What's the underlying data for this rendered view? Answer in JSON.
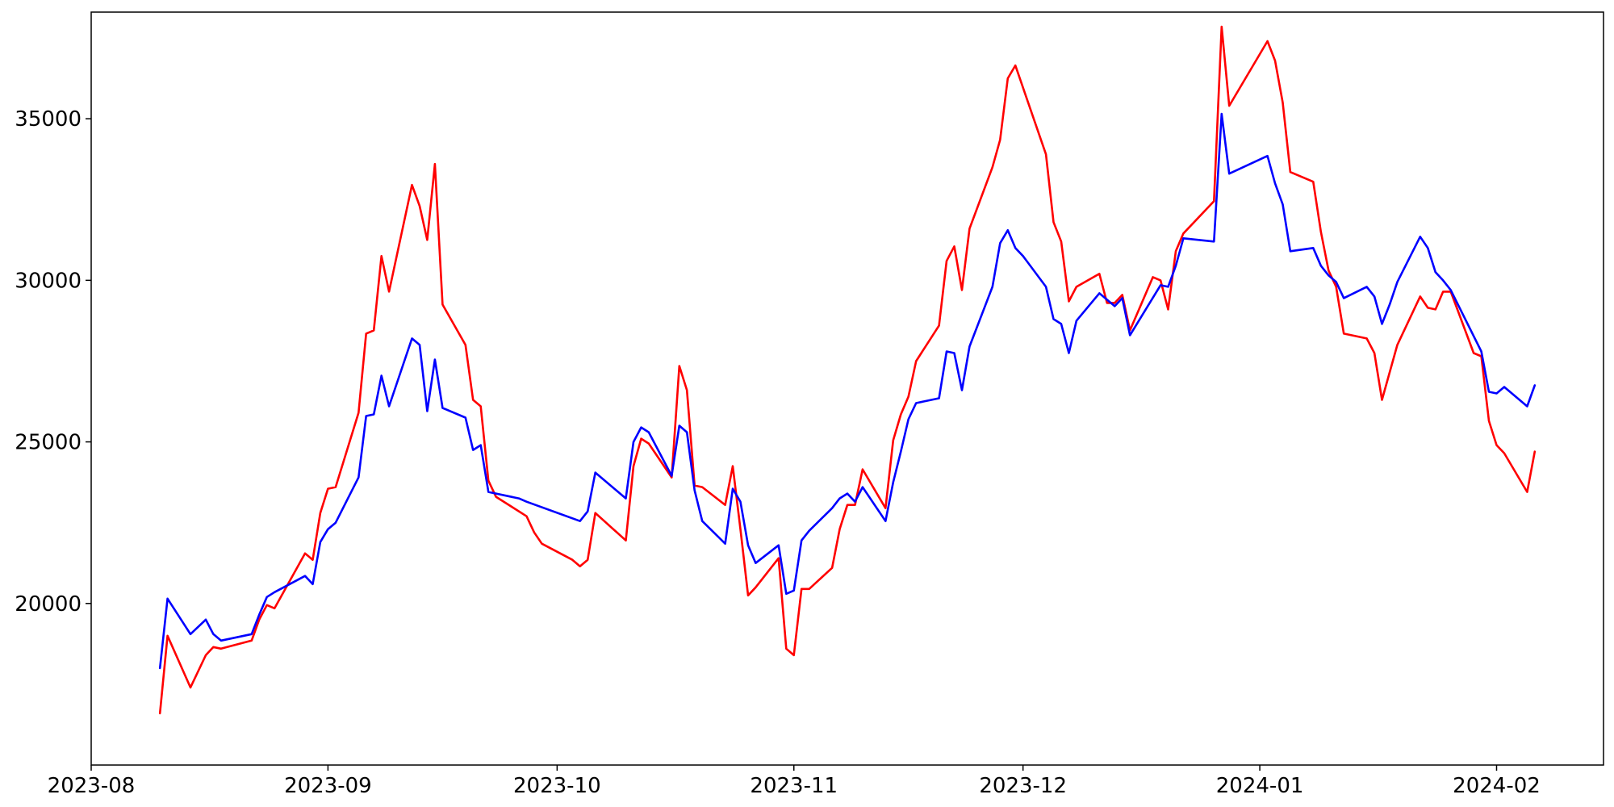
{
  "chart_data": {
    "type": "line",
    "title": "",
    "xlabel": "",
    "ylabel": "",
    "xlim": [
      "2023-08-01",
      "2024-02-15"
    ],
    "ylim": [
      15000,
      38300
    ],
    "grid": false,
    "legend": "none",
    "x_ticks": [
      "2023-08",
      "2023-09",
      "2023-10",
      "2023-11",
      "2023-12",
      "2024-01",
      "2024-02"
    ],
    "x_tick_dates": [
      "2023-08-01",
      "2023-09-01",
      "2023-10-01",
      "2023-11-01",
      "2023-12-01",
      "2024-01-01",
      "2024-02-01"
    ],
    "y_ticks": [
      20000,
      25000,
      30000,
      35000
    ],
    "series": [
      {
        "color": "#ff0000",
        "points": [
          [
            "2023-08-10",
            16600
          ],
          [
            "2023-08-11",
            19000
          ],
          [
            "2023-08-14",
            17400
          ],
          [
            "2023-08-16",
            18400
          ],
          [
            "2023-08-17",
            18650
          ],
          [
            "2023-08-18",
            18600
          ],
          [
            "2023-08-22",
            18850
          ],
          [
            "2023-08-23",
            19500
          ],
          [
            "2023-08-24",
            19950
          ],
          [
            "2023-08-25",
            19850
          ],
          [
            "2023-08-29",
            21550
          ],
          [
            "2023-08-30",
            21350
          ],
          [
            "2023-08-31",
            22800
          ],
          [
            "2023-09-01",
            23550
          ],
          [
            "2023-09-02",
            23600
          ],
          [
            "2023-09-05",
            25900
          ],
          [
            "2023-09-06",
            28350
          ],
          [
            "2023-09-07",
            28450
          ],
          [
            "2023-09-08",
            30750
          ],
          [
            "2023-09-09",
            29650
          ],
          [
            "2023-09-12",
            32950
          ],
          [
            "2023-09-13",
            32300
          ],
          [
            "2023-09-14",
            31250
          ],
          [
            "2023-09-15",
            33600
          ],
          [
            "2023-09-16",
            29250
          ],
          [
            "2023-09-19",
            28000
          ],
          [
            "2023-09-20",
            26300
          ],
          [
            "2023-09-21",
            26100
          ],
          [
            "2023-09-22",
            23800
          ],
          [
            "2023-09-23",
            23300
          ],
          [
            "2023-09-27",
            22700
          ],
          [
            "2023-09-28",
            22200
          ],
          [
            "2023-09-29",
            21850
          ],
          [
            "2023-10-03",
            21350
          ],
          [
            "2023-10-04",
            21150
          ],
          [
            "2023-10-05",
            21350
          ],
          [
            "2023-10-06",
            22800
          ],
          [
            "2023-10-10",
            21950
          ],
          [
            "2023-10-11",
            24250
          ],
          [
            "2023-10-12",
            25100
          ],
          [
            "2023-10-13",
            24950
          ],
          [
            "2023-10-16",
            23900
          ],
          [
            "2023-10-17",
            27350
          ],
          [
            "2023-10-18",
            26600
          ],
          [
            "2023-10-19",
            23650
          ],
          [
            "2023-10-20",
            23600
          ],
          [
            "2023-10-23",
            23050
          ],
          [
            "2023-10-24",
            24250
          ],
          [
            "2023-10-25",
            22300
          ],
          [
            "2023-10-26",
            20250
          ],
          [
            "2023-10-27",
            20500
          ],
          [
            "2023-10-30",
            21400
          ],
          [
            "2023-10-31",
            18600
          ],
          [
            "2023-11-01",
            18400
          ],
          [
            "2023-11-02",
            20450
          ],
          [
            "2023-11-03",
            20450
          ],
          [
            "2023-11-06",
            21100
          ],
          [
            "2023-11-07",
            22300
          ],
          [
            "2023-11-08",
            23050
          ],
          [
            "2023-11-09",
            23050
          ],
          [
            "2023-11-10",
            24150
          ],
          [
            "2023-11-13",
            22950
          ],
          [
            "2023-11-14",
            25050
          ],
          [
            "2023-11-15",
            25850
          ],
          [
            "2023-11-16",
            26400
          ],
          [
            "2023-11-17",
            27500
          ],
          [
            "2023-11-20",
            28600
          ],
          [
            "2023-11-21",
            30600
          ],
          [
            "2023-11-22",
            31050
          ],
          [
            "2023-11-23",
            29700
          ],
          [
            "2023-11-24",
            31600
          ],
          [
            "2023-11-27",
            33500
          ],
          [
            "2023-11-28",
            34350
          ],
          [
            "2023-11-29",
            36250
          ],
          [
            "2023-11-30",
            36650
          ],
          [
            "2023-12-04",
            33900
          ],
          [
            "2023-12-05",
            31800
          ],
          [
            "2023-12-06",
            31200
          ],
          [
            "2023-12-07",
            29350
          ],
          [
            "2023-12-08",
            29800
          ],
          [
            "2023-12-11",
            30200
          ],
          [
            "2023-12-12",
            29300
          ],
          [
            "2023-12-13",
            29300
          ],
          [
            "2023-12-14",
            29550
          ],
          [
            "2023-12-15",
            28450
          ],
          [
            "2023-12-18",
            30100
          ],
          [
            "2023-12-19",
            30000
          ],
          [
            "2023-12-20",
            29100
          ],
          [
            "2023-12-21",
            30900
          ],
          [
            "2023-12-22",
            31450
          ],
          [
            "2023-12-26",
            32450
          ],
          [
            "2023-12-27",
            37850
          ],
          [
            "2023-12-28",
            35400
          ],
          [
            "2024-01-02",
            37400
          ],
          [
            "2024-01-03",
            36800
          ],
          [
            "2024-01-04",
            35500
          ],
          [
            "2024-01-05",
            33350
          ],
          [
            "2024-01-08",
            33050
          ],
          [
            "2024-01-09",
            31500
          ],
          [
            "2024-01-10",
            30300
          ],
          [
            "2024-01-11",
            29800
          ],
          [
            "2024-01-12",
            28350
          ],
          [
            "2024-01-15",
            28200
          ],
          [
            "2024-01-16",
            27750
          ],
          [
            "2024-01-17",
            26300
          ],
          [
            "2024-01-19",
            28000
          ],
          [
            "2024-01-22",
            29500
          ],
          [
            "2024-01-23",
            29150
          ],
          [
            "2024-01-24",
            29100
          ],
          [
            "2024-01-25",
            29650
          ],
          [
            "2024-01-26",
            29650
          ],
          [
            "2024-01-29",
            27750
          ],
          [
            "2024-01-30",
            27650
          ],
          [
            "2024-01-31",
            25650
          ],
          [
            "2024-02-01",
            24900
          ],
          [
            "2024-02-02",
            24650
          ],
          [
            "2024-02-05",
            23450
          ],
          [
            "2024-02-06",
            24700
          ]
        ]
      },
      {
        "color": "#0000ff",
        "points": [
          [
            "2023-08-10",
            18000
          ],
          [
            "2023-08-11",
            20150
          ],
          [
            "2023-08-14",
            19050
          ],
          [
            "2023-08-16",
            19500
          ],
          [
            "2023-08-17",
            19050
          ],
          [
            "2023-08-18",
            18850
          ],
          [
            "2023-08-22",
            19050
          ],
          [
            "2023-08-23",
            19650
          ],
          [
            "2023-08-24",
            20200
          ],
          [
            "2023-08-25",
            20350
          ],
          [
            "2023-08-29",
            20850
          ],
          [
            "2023-08-30",
            20600
          ],
          [
            "2023-08-31",
            21900
          ],
          [
            "2023-09-01",
            22300
          ],
          [
            "2023-09-02",
            22500
          ],
          [
            "2023-09-05",
            23900
          ],
          [
            "2023-09-06",
            25800
          ],
          [
            "2023-09-07",
            25850
          ],
          [
            "2023-09-08",
            27050
          ],
          [
            "2023-09-09",
            26100
          ],
          [
            "2023-09-12",
            28200
          ],
          [
            "2023-09-13",
            28000
          ],
          [
            "2023-09-14",
            25950
          ],
          [
            "2023-09-15",
            27550
          ],
          [
            "2023-09-16",
            26050
          ],
          [
            "2023-09-19",
            25750
          ],
          [
            "2023-09-20",
            24750
          ],
          [
            "2023-09-21",
            24900
          ],
          [
            "2023-09-22",
            23450
          ],
          [
            "2023-09-26",
            23250
          ],
          [
            "2023-09-27",
            23150
          ],
          [
            "2023-10-04",
            22550
          ],
          [
            "2023-10-05",
            22850
          ],
          [
            "2023-10-06",
            24050
          ],
          [
            "2023-10-10",
            23250
          ],
          [
            "2023-10-11",
            25000
          ],
          [
            "2023-10-12",
            25450
          ],
          [
            "2023-10-13",
            25300
          ],
          [
            "2023-10-16",
            23950
          ],
          [
            "2023-10-17",
            25500
          ],
          [
            "2023-10-18",
            25300
          ],
          [
            "2023-10-19",
            23500
          ],
          [
            "2023-10-20",
            22550
          ],
          [
            "2023-10-23",
            21850
          ],
          [
            "2023-10-24",
            23550
          ],
          [
            "2023-10-25",
            23150
          ],
          [
            "2023-10-26",
            21800
          ],
          [
            "2023-10-27",
            21250
          ],
          [
            "2023-10-30",
            21800
          ],
          [
            "2023-10-31",
            20300
          ],
          [
            "2023-11-01",
            20400
          ],
          [
            "2023-11-02",
            21950
          ],
          [
            "2023-11-03",
            22250
          ],
          [
            "2023-11-06",
            22950
          ],
          [
            "2023-11-07",
            23250
          ],
          [
            "2023-11-08",
            23400
          ],
          [
            "2023-11-09",
            23150
          ],
          [
            "2023-11-10",
            23600
          ],
          [
            "2023-11-13",
            22550
          ],
          [
            "2023-11-14",
            23750
          ],
          [
            "2023-11-15",
            24700
          ],
          [
            "2023-11-16",
            25700
          ],
          [
            "2023-11-17",
            26200
          ],
          [
            "2023-11-20",
            26350
          ],
          [
            "2023-11-21",
            27800
          ],
          [
            "2023-11-22",
            27750
          ],
          [
            "2023-11-23",
            26600
          ],
          [
            "2023-11-24",
            27950
          ],
          [
            "2023-11-27",
            29800
          ],
          [
            "2023-11-28",
            31150
          ],
          [
            "2023-11-29",
            31550
          ],
          [
            "2023-11-30",
            31000
          ],
          [
            "2023-12-01",
            30750
          ],
          [
            "2023-12-04",
            29800
          ],
          [
            "2023-12-05",
            28800
          ],
          [
            "2023-12-06",
            28650
          ],
          [
            "2023-12-07",
            27750
          ],
          [
            "2023-12-08",
            28750
          ],
          [
            "2023-12-11",
            29600
          ],
          [
            "2023-12-12",
            29400
          ],
          [
            "2023-12-13",
            29200
          ],
          [
            "2023-12-14",
            29450
          ],
          [
            "2023-12-15",
            28300
          ],
          [
            "2023-12-19",
            29850
          ],
          [
            "2023-12-20",
            29800
          ],
          [
            "2023-12-21",
            30450
          ],
          [
            "2023-12-22",
            31300
          ],
          [
            "2023-12-26",
            31200
          ],
          [
            "2023-12-27",
            35150
          ],
          [
            "2023-12-28",
            33300
          ],
          [
            "2024-01-02",
            33850
          ],
          [
            "2024-01-03",
            33000
          ],
          [
            "2024-01-04",
            32350
          ],
          [
            "2024-01-05",
            30900
          ],
          [
            "2024-01-08",
            31000
          ],
          [
            "2024-01-09",
            30450
          ],
          [
            "2024-01-10",
            30150
          ],
          [
            "2024-01-11",
            29950
          ],
          [
            "2024-01-12",
            29450
          ],
          [
            "2024-01-15",
            29800
          ],
          [
            "2024-01-16",
            29500
          ],
          [
            "2024-01-17",
            28650
          ],
          [
            "2024-01-18",
            29250
          ],
          [
            "2024-01-19",
            29950
          ],
          [
            "2024-01-22",
            31350
          ],
          [
            "2024-01-23",
            31000
          ],
          [
            "2024-01-24",
            30250
          ],
          [
            "2024-01-25",
            30000
          ],
          [
            "2024-01-26",
            29700
          ],
          [
            "2024-01-30",
            27800
          ],
          [
            "2024-01-31",
            26550
          ],
          [
            "2024-02-01",
            26500
          ],
          [
            "2024-02-02",
            26700
          ],
          [
            "2024-02-05",
            26100
          ],
          [
            "2024-02-06",
            26750
          ]
        ]
      }
    ]
  }
}
